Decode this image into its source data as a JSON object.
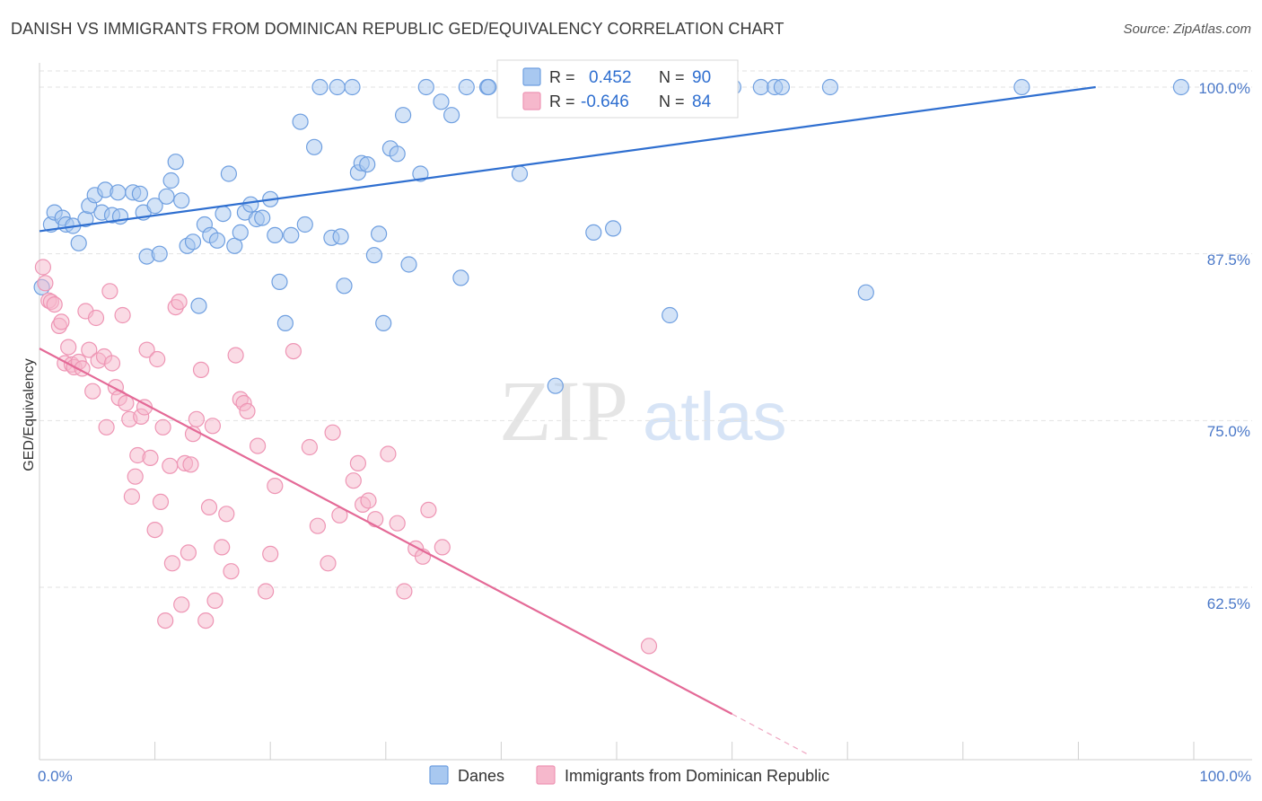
{
  "title": "DANISH VS IMMIGRANTS FROM DOMINICAN REPUBLIC GED/EQUIVALENCY CORRELATION CHART",
  "source": "Source: ZipAtlas.com",
  "watermark": {
    "zip": "ZIP",
    "atlas": "atlas"
  },
  "legend_top": [
    {
      "r_label": "R =",
      "r_value": "0.452",
      "n_label": "N =",
      "n_value": "90",
      "color": "#a8c8f0"
    },
    {
      "r_label": "R =",
      "r_value": "-0.646",
      "n_label": "N =",
      "n_value": "84",
      "color": "#f6b8cc"
    }
  ],
  "legend_bottom": [
    {
      "label": "Danes",
      "color": "#a8c8f0"
    },
    {
      "label": "Immigrants from Dominican Republic",
      "color": "#f6b8cc"
    }
  ],
  "chart_data": {
    "type": "scatter",
    "title": "DANISH VS IMMIGRANTS FROM DOMINICAN REPUBLIC GED/EQUIVALENCY CORRELATION CHART",
    "xlabel": "",
    "ylabel": "GED/Equivalency",
    "xlim": [
      0,
      100
    ],
    "ylim": [
      50.5,
      101.5
    ],
    "x_tick_labels": [
      "0.0%",
      "100.0%"
    ],
    "y_ticks": [
      62.5,
      75.0,
      87.5,
      100.0
    ],
    "y_tick_labels": [
      "62.5%",
      "75.0%",
      "87.5%",
      "100.0%"
    ],
    "grid": true,
    "legend_position": "top-center",
    "series": [
      {
        "name": "Danes",
        "color": "#6f9fe0",
        "fill": "#a8c8f0",
        "line_color": "#2f6fd0",
        "trend": {
          "x": [
            0,
            91.5
          ],
          "y": [
            89.2,
            100.0
          ]
        },
        "points": [
          [
            0.2,
            85.0
          ],
          [
            1.0,
            89.7
          ],
          [
            1.3,
            90.6
          ],
          [
            2.0,
            90.2
          ],
          [
            2.3,
            89.7
          ],
          [
            2.9,
            89.6
          ],
          [
            3.4,
            88.3
          ],
          [
            4.0,
            90.1
          ],
          [
            4.3,
            91.1
          ],
          [
            4.8,
            91.9
          ],
          [
            5.4,
            90.6
          ],
          [
            5.7,
            92.3
          ],
          [
            6.3,
            90.4
          ],
          [
            6.8,
            92.1
          ],
          [
            7.0,
            90.3
          ],
          [
            8.1,
            92.1
          ],
          [
            8.7,
            92.0
          ],
          [
            9.0,
            90.6
          ],
          [
            9.3,
            87.3
          ],
          [
            10.0,
            91.1
          ],
          [
            10.4,
            87.5
          ],
          [
            11.0,
            91.8
          ],
          [
            11.4,
            93.0
          ],
          [
            11.8,
            94.4
          ],
          [
            12.3,
            91.5
          ],
          [
            12.8,
            88.1
          ],
          [
            13.3,
            88.4
          ],
          [
            13.8,
            83.6
          ],
          [
            14.3,
            89.7
          ],
          [
            14.8,
            88.9
          ],
          [
            15.4,
            88.5
          ],
          [
            15.9,
            90.5
          ],
          [
            16.4,
            93.5
          ],
          [
            16.9,
            88.1
          ],
          [
            17.4,
            89.1
          ],
          [
            17.8,
            90.6
          ],
          [
            18.3,
            91.2
          ],
          [
            18.8,
            90.1
          ],
          [
            19.3,
            90.2
          ],
          [
            20.0,
            91.6
          ],
          [
            20.4,
            88.9
          ],
          [
            20.8,
            85.4
          ],
          [
            21.3,
            82.3
          ],
          [
            21.8,
            88.9
          ],
          [
            22.6,
            97.4
          ],
          [
            23.0,
            89.7
          ],
          [
            23.8,
            95.5
          ],
          [
            24.3,
            100.0
          ],
          [
            25.3,
            88.7
          ],
          [
            25.8,
            100.0
          ],
          [
            26.1,
            88.8
          ],
          [
            26.4,
            85.1
          ],
          [
            27.1,
            100.0
          ],
          [
            27.6,
            93.6
          ],
          [
            27.9,
            94.3
          ],
          [
            28.4,
            94.2
          ],
          [
            29.0,
            87.4
          ],
          [
            29.4,
            89.0
          ],
          [
            29.8,
            82.3
          ],
          [
            30.4,
            95.4
          ],
          [
            31.0,
            95.0
          ],
          [
            31.5,
            97.9
          ],
          [
            32.0,
            86.7
          ],
          [
            33.0,
            93.5
          ],
          [
            33.5,
            100.0
          ],
          [
            34.8,
            98.9
          ],
          [
            35.7,
            97.9
          ],
          [
            36.5,
            85.7
          ],
          [
            37.0,
            100.0
          ],
          [
            38.8,
            100.0
          ],
          [
            38.9,
            100.0
          ],
          [
            41.2,
            100.0
          ],
          [
            41.6,
            93.5
          ],
          [
            43.1,
            100.0
          ],
          [
            44.7,
            77.6
          ],
          [
            47.0,
            100.0
          ],
          [
            47.6,
            100.0
          ],
          [
            48.0,
            89.1
          ],
          [
            49.7,
            89.4
          ],
          [
            53.9,
            100.0
          ],
          [
            54.6,
            82.9
          ],
          [
            58.5,
            100.0
          ],
          [
            60.1,
            100.0
          ],
          [
            62.5,
            100.0
          ],
          [
            63.7,
            100.0
          ],
          [
            64.3,
            100.0
          ],
          [
            68.5,
            100.0
          ],
          [
            71.6,
            84.6
          ],
          [
            85.1,
            100.0
          ],
          [
            98.9,
            100.0
          ]
        ]
      },
      {
        "name": "Immigrants from Dominican Republic",
        "color": "#ee95b4",
        "fill": "#f6b8cc",
        "line_color": "#e46a97",
        "trend": {
          "x": [
            0,
            60
          ],
          "y": [
            80.4,
            53.0
          ]
        },
        "trend_dashed": {
          "x": [
            60,
            66.5
          ],
          "y": [
            53.0,
            50.0
          ]
        },
        "points": [
          [
            0.3,
            86.5
          ],
          [
            0.5,
            85.3
          ],
          [
            0.8,
            84.0
          ],
          [
            1.0,
            83.9
          ],
          [
            1.3,
            83.7
          ],
          [
            1.7,
            82.1
          ],
          [
            1.9,
            82.4
          ],
          [
            2.2,
            79.3
          ],
          [
            2.5,
            80.5
          ],
          [
            2.8,
            79.2
          ],
          [
            3.0,
            79.0
          ],
          [
            3.4,
            79.4
          ],
          [
            3.7,
            78.9
          ],
          [
            4.0,
            83.2
          ],
          [
            4.3,
            80.3
          ],
          [
            4.6,
            77.2
          ],
          [
            4.9,
            82.7
          ],
          [
            5.1,
            79.5
          ],
          [
            5.6,
            79.8
          ],
          [
            5.8,
            74.5
          ],
          [
            6.1,
            84.7
          ],
          [
            6.3,
            79.3
          ],
          [
            6.6,
            77.5
          ],
          [
            6.9,
            76.7
          ],
          [
            7.2,
            82.9
          ],
          [
            7.5,
            76.3
          ],
          [
            7.8,
            75.1
          ],
          [
            8.0,
            69.3
          ],
          [
            8.3,
            70.8
          ],
          [
            8.5,
            72.4
          ],
          [
            8.8,
            75.3
          ],
          [
            9.1,
            76.0
          ],
          [
            9.3,
            80.3
          ],
          [
            9.6,
            72.2
          ],
          [
            10.0,
            66.8
          ],
          [
            10.2,
            79.6
          ],
          [
            10.5,
            68.9
          ],
          [
            10.7,
            74.5
          ],
          [
            10.9,
            60.0
          ],
          [
            11.3,
            71.6
          ],
          [
            11.5,
            64.3
          ],
          [
            11.8,
            83.5
          ],
          [
            12.1,
            83.9
          ],
          [
            12.3,
            61.2
          ],
          [
            12.6,
            71.8
          ],
          [
            12.9,
            65.1
          ],
          [
            13.1,
            71.7
          ],
          [
            13.3,
            74.0
          ],
          [
            13.6,
            75.1
          ],
          [
            14.0,
            78.8
          ],
          [
            14.4,
            60.0
          ],
          [
            14.7,
            68.5
          ],
          [
            15.0,
            74.6
          ],
          [
            15.2,
            61.5
          ],
          [
            15.8,
            65.5
          ],
          [
            16.2,
            68.0
          ],
          [
            16.6,
            63.7
          ],
          [
            17.0,
            79.9
          ],
          [
            17.4,
            76.6
          ],
          [
            17.7,
            76.3
          ],
          [
            18.0,
            75.7
          ],
          [
            18.9,
            73.1
          ],
          [
            19.6,
            62.2
          ],
          [
            20.0,
            65.0
          ],
          [
            20.4,
            70.1
          ],
          [
            22.0,
            80.2
          ],
          [
            23.4,
            73.0
          ],
          [
            24.1,
            67.1
          ],
          [
            25.0,
            64.3
          ],
          [
            25.4,
            74.1
          ],
          [
            26.0,
            67.9
          ],
          [
            27.2,
            70.5
          ],
          [
            27.6,
            71.8
          ],
          [
            28.0,
            68.7
          ],
          [
            28.5,
            69.0
          ],
          [
            29.1,
            67.6
          ],
          [
            30.2,
            72.5
          ],
          [
            31.0,
            67.3
          ],
          [
            31.6,
            62.2
          ],
          [
            32.6,
            65.4
          ],
          [
            33.2,
            64.8
          ],
          [
            33.7,
            68.3
          ],
          [
            34.9,
            65.5
          ],
          [
            52.8,
            58.1
          ]
        ]
      }
    ]
  }
}
